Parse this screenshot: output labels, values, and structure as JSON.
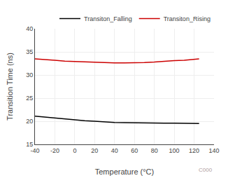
{
  "chart_data": {
    "type": "line",
    "xlabel": "Temperature (°C)",
    "ylabel": "Transition Time (ns)",
    "xlim": [
      -40,
      140
    ],
    "ylim": [
      15,
      40
    ],
    "xticks": [
      -40,
      -20,
      0,
      20,
      40,
      60,
      80,
      100,
      120,
      140
    ],
    "yticks": [
      15,
      20,
      25,
      30,
      35,
      40
    ],
    "grid": true,
    "legend": "upper right",
    "series": [
      {
        "name": "Transiton_Falling",
        "color": "#000000",
        "x": [
          -40,
          -30,
          -20,
          -10,
          0,
          10,
          20,
          30,
          40,
          50,
          60,
          70,
          80,
          90,
          100,
          110,
          120,
          125
        ],
        "values": [
          21.1,
          20.9,
          20.6,
          20.4,
          20.2,
          20.1,
          20.0,
          19.85,
          19.75,
          19.7,
          19.65,
          19.65,
          19.65,
          19.6,
          19.6,
          19.6,
          19.55,
          19.5
        ]
      },
      {
        "name": "Transiton_Rising",
        "color": "#cc0000",
        "x": [
          -40,
          -30,
          -20,
          -10,
          0,
          10,
          20,
          30,
          40,
          50,
          60,
          70,
          80,
          90,
          100,
          110,
          120,
          125
        ],
        "values": [
          33.5,
          33.4,
          33.2,
          33.0,
          32.9,
          32.8,
          32.7,
          32.65,
          32.6,
          32.6,
          32.6,
          32.7,
          32.8,
          33.0,
          33.1,
          33.2,
          33.4,
          33.5
        ]
      }
    ],
    "annotations": [
      {
        "text": "C000",
        "color": "#b0a0a0"
      }
    ]
  }
}
